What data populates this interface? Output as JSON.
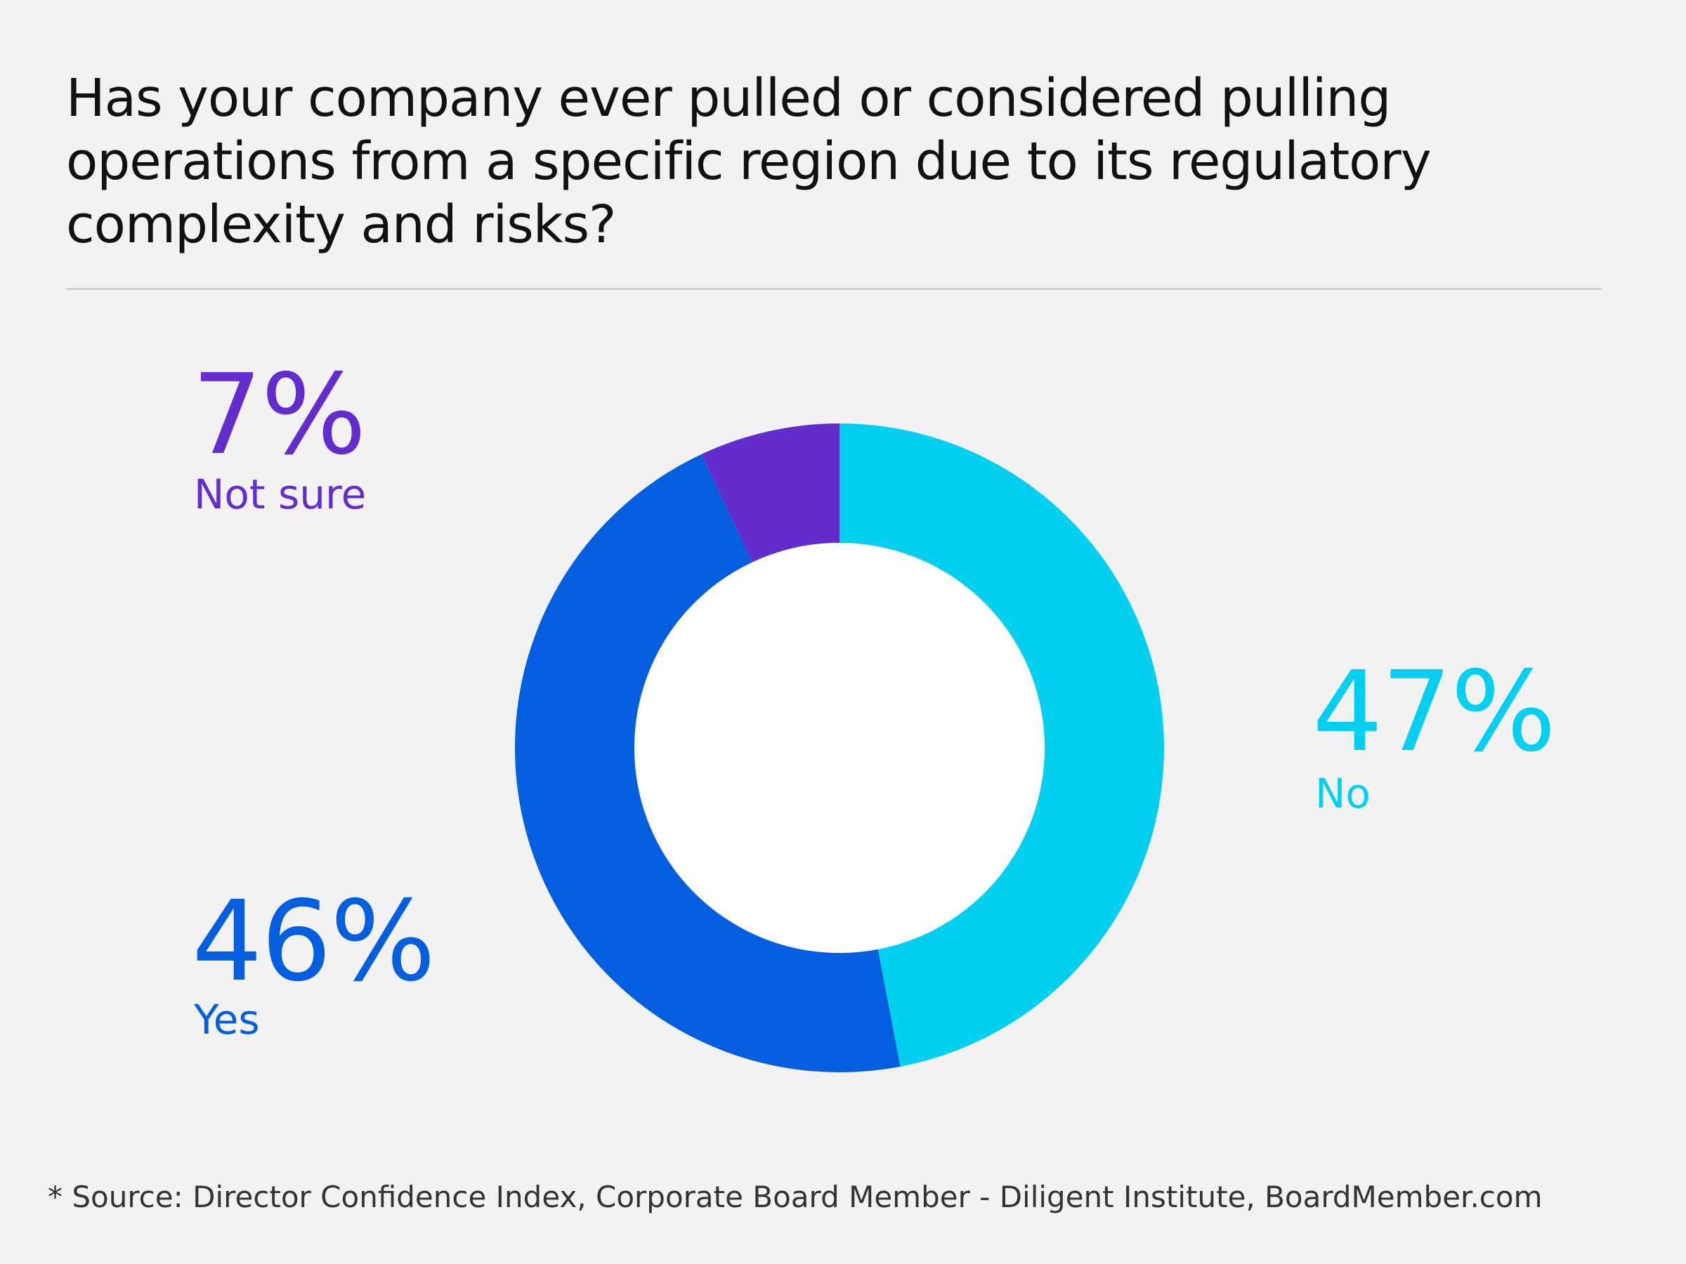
{
  "title": "Has your company ever pulled or considered pulling operations from a specific region due to its regulatory complexity and risks?",
  "source": "* Source: Director Confidence Index, Corporate Board Member - Diligent Institute, BoardMember.com",
  "chart_data": {
    "type": "pie",
    "donut": true,
    "title": "Has your company ever pulled or considered pulling operations from a specific region due to its regulatory complexity and risks?",
    "categories": [
      "No",
      "Yes",
      "Not sure"
    ],
    "values": [
      47,
      46,
      7
    ],
    "colors": [
      "#03cff0",
      "#045fe0",
      "#622dcc"
    ],
    "labels": {
      "no": {
        "pct": "47%",
        "name": "No"
      },
      "yes": {
        "pct": "46%",
        "name": "Yes"
      },
      "not_sure": {
        "pct": "7%",
        "name": "Not sure"
      }
    },
    "legend": "none"
  }
}
